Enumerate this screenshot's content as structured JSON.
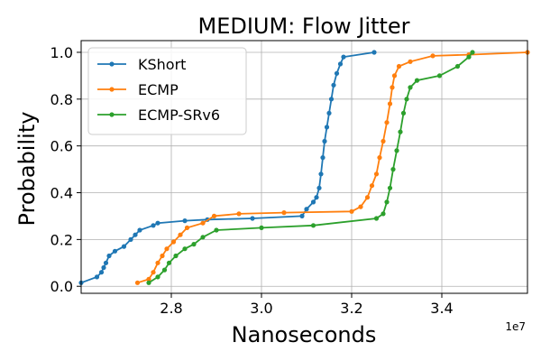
{
  "chart_data": {
    "type": "line",
    "title": "MEDIUM: Flow Jitter",
    "xlabel": "Nanoseconds",
    "ylabel": "Probability",
    "x_offset_label": "1e7",
    "xlim": [
      26.0,
      35.9
    ],
    "ylim": [
      -0.03,
      1.05
    ],
    "x_ticks": [
      28,
      30,
      32,
      34
    ],
    "x_tick_labels": [
      "2.8",
      "3.0",
      "3.2",
      "3.4"
    ],
    "y_ticks": [
      0.0,
      0.2,
      0.4,
      0.6,
      0.8,
      1.0
    ],
    "y_tick_labels": [
      "0.0",
      "0.2",
      "0.4",
      "0.6",
      "0.8",
      "1.0"
    ],
    "grid": true,
    "legend_position": "upper-left",
    "series": [
      {
        "name": "KShort",
        "color": "#1f77b4",
        "points": [
          [
            26.0,
            0.015
          ],
          [
            26.35,
            0.04
          ],
          [
            26.45,
            0.06
          ],
          [
            26.5,
            0.08
          ],
          [
            26.55,
            0.1
          ],
          [
            26.62,
            0.13
          ],
          [
            26.75,
            0.15
          ],
          [
            26.95,
            0.17
          ],
          [
            27.1,
            0.2
          ],
          [
            27.2,
            0.22
          ],
          [
            27.3,
            0.24
          ],
          [
            27.6,
            0.26
          ],
          [
            27.7,
            0.27
          ],
          [
            28.3,
            0.28
          ],
          [
            28.8,
            0.285
          ],
          [
            29.8,
            0.29
          ],
          [
            30.9,
            0.3
          ],
          [
            31.0,
            0.33
          ],
          [
            31.15,
            0.36
          ],
          [
            31.22,
            0.38
          ],
          [
            31.28,
            0.42
          ],
          [
            31.32,
            0.48
          ],
          [
            31.36,
            0.55
          ],
          [
            31.4,
            0.62
          ],
          [
            31.45,
            0.68
          ],
          [
            31.5,
            0.74
          ],
          [
            31.55,
            0.8
          ],
          [
            31.6,
            0.86
          ],
          [
            31.67,
            0.91
          ],
          [
            31.75,
            0.95
          ],
          [
            31.82,
            0.98
          ],
          [
            32.5,
            1.0
          ]
        ]
      },
      {
        "name": "ECMP",
        "color": "#ff7f0e",
        "points": [
          [
            27.25,
            0.015
          ],
          [
            27.5,
            0.03
          ],
          [
            27.6,
            0.06
          ],
          [
            27.7,
            0.1
          ],
          [
            27.8,
            0.13
          ],
          [
            27.9,
            0.16
          ],
          [
            28.05,
            0.19
          ],
          [
            28.2,
            0.22
          ],
          [
            28.35,
            0.25
          ],
          [
            28.7,
            0.27
          ],
          [
            28.95,
            0.3
          ],
          [
            29.5,
            0.31
          ],
          [
            30.5,
            0.315
          ],
          [
            32.0,
            0.32
          ],
          [
            32.2,
            0.34
          ],
          [
            32.35,
            0.38
          ],
          [
            32.45,
            0.43
          ],
          [
            32.55,
            0.48
          ],
          [
            32.62,
            0.55
          ],
          [
            32.7,
            0.62
          ],
          [
            32.78,
            0.7
          ],
          [
            32.85,
            0.78
          ],
          [
            32.9,
            0.85
          ],
          [
            32.95,
            0.9
          ],
          [
            33.05,
            0.94
          ],
          [
            33.3,
            0.96
          ],
          [
            33.8,
            0.985
          ],
          [
            34.6,
            0.99
          ],
          [
            35.9,
            1.0
          ]
        ]
      },
      {
        "name": "ECMP-SRv6",
        "color": "#2ca02c",
        "points": [
          [
            27.5,
            0.015
          ],
          [
            27.7,
            0.04
          ],
          [
            27.85,
            0.07
          ],
          [
            27.95,
            0.1
          ],
          [
            28.1,
            0.13
          ],
          [
            28.3,
            0.16
          ],
          [
            28.5,
            0.18
          ],
          [
            28.7,
            0.21
          ],
          [
            29.0,
            0.24
          ],
          [
            30.0,
            0.25
          ],
          [
            31.15,
            0.26
          ],
          [
            32.55,
            0.29
          ],
          [
            32.7,
            0.31
          ],
          [
            32.78,
            0.36
          ],
          [
            32.85,
            0.42
          ],
          [
            32.92,
            0.5
          ],
          [
            33.0,
            0.58
          ],
          [
            33.08,
            0.66
          ],
          [
            33.15,
            0.74
          ],
          [
            33.22,
            0.8
          ],
          [
            33.3,
            0.85
          ],
          [
            33.45,
            0.88
          ],
          [
            33.95,
            0.9
          ],
          [
            34.35,
            0.94
          ],
          [
            34.6,
            0.98
          ],
          [
            34.68,
            1.0
          ]
        ]
      }
    ]
  }
}
